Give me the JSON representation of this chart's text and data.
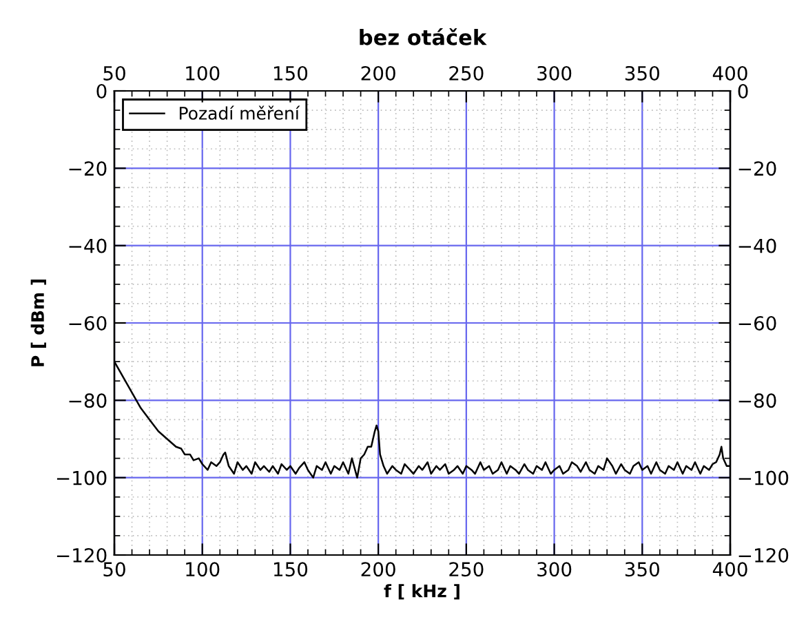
{
  "chart_data": {
    "type": "line",
    "title": "bez otáček",
    "xlabel": "f [ kHz ]",
    "ylabel": "P [ dBm ]",
    "xlim": [
      50,
      400
    ],
    "xticks": [
      50,
      100,
      150,
      200,
      250,
      300,
      350,
      400
    ],
    "x2lim": [
      50,
      400
    ],
    "x2ticks": [
      50,
      100,
      150,
      200,
      250,
      300,
      350,
      400
    ],
    "ylim": [
      -120,
      0
    ],
    "yticks": [
      -120,
      -100,
      -80,
      -60,
      -40,
      -20,
      0
    ],
    "y2lim": [
      -120,
      0
    ],
    "y2ticks": [
      -120,
      -100,
      -80,
      -60,
      -40,
      -20,
      0
    ],
    "grid": true,
    "legend": "top left",
    "marker": "none",
    "line_style": "solid",
    "series": [
      {
        "name": "Pozadí měření",
        "color": "#000000",
        "x": [
          50,
          55,
          60,
          65,
          70,
          75,
          80,
          85,
          88,
          90,
          93,
          95,
          98,
          100,
          103,
          105,
          108,
          110,
          112,
          113,
          115,
          118,
          120,
          123,
          125,
          128,
          130,
          133,
          135,
          138,
          140,
          143,
          145,
          148,
          150,
          153,
          155,
          158,
          160,
          163,
          165,
          168,
          170,
          173,
          175,
          178,
          180,
          183,
          185,
          188,
          190,
          192,
          194,
          196,
          198,
          199,
          200,
          201,
          203,
          205,
          208,
          210,
          213,
          215,
          218,
          220,
          223,
          225,
          228,
          230,
          233,
          235,
          238,
          240,
          243,
          245,
          248,
          250,
          253,
          255,
          258,
          260,
          263,
          265,
          268,
          270,
          273,
          275,
          278,
          280,
          283,
          285,
          288,
          290,
          293,
          295,
          298,
          300,
          303,
          305,
          308,
          310,
          313,
          315,
          318,
          320,
          323,
          325,
          328,
          330,
          333,
          335,
          338,
          340,
          343,
          345,
          348,
          350,
          353,
          355,
          358,
          360,
          363,
          365,
          368,
          370,
          373,
          375,
          378,
          380,
          383,
          385,
          388,
          390,
          392,
          394,
          395,
          396,
          398,
          400
        ],
        "values": [
          -70,
          -74,
          -78,
          -82,
          -85,
          -88,
          -90,
          -92,
          -92.5,
          -94,
          -94,
          -95.5,
          -95,
          -96.5,
          -98,
          -96,
          -97,
          -96,
          -94,
          -93.5,
          -97,
          -99,
          -96,
          -98,
          -97,
          -99,
          -96,
          -98,
          -97,
          -98.5,
          -97,
          -99,
          -96.5,
          -98,
          -97,
          -99,
          -97.5,
          -96,
          -98,
          -100,
          -97,
          -98,
          -96,
          -99,
          -97,
          -98,
          -96,
          -99,
          -95,
          -100,
          -95,
          -94,
          -92,
          -92,
          -88,
          -86.5,
          -88,
          -94,
          -97,
          -99,
          -97,
          -98,
          -99,
          -96.5,
          -98,
          -99,
          -97,
          -98,
          -96,
          -99,
          -97,
          -98,
          -96.5,
          -99,
          -98,
          -97,
          -99,
          -97,
          -98,
          -99,
          -96,
          -98,
          -97,
          -99,
          -98,
          -96,
          -99,
          -97,
          -98,
          -99,
          -96.5,
          -98,
          -99,
          -97,
          -98,
          -96,
          -99,
          -98,
          -97,
          -99,
          -98,
          -96,
          -97,
          -98.5,
          -96,
          -98,
          -99,
          -97,
          -98,
          -95,
          -97,
          -99,
          -96.5,
          -98,
          -99,
          -97,
          -96,
          -98,
          -97,
          -99,
          -96,
          -98,
          -99,
          -97,
          -98,
          -96,
          -99,
          -97,
          -98,
          -96,
          -99,
          -97,
          -98,
          -96.5,
          -96,
          -94,
          -92,
          -95,
          -97,
          -97
        ]
      }
    ]
  }
}
